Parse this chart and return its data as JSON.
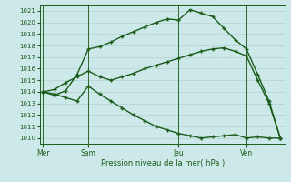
{
  "background_color": "#cce8e8",
  "grid_color": "#aacccc",
  "line_color": "#1a5c1a",
  "title": "Pression niveau de la mer( hPa )",
  "ylim": [
    1009.5,
    1021.5
  ],
  "yticks": [
    1010,
    1011,
    1012,
    1013,
    1014,
    1015,
    1016,
    1017,
    1018,
    1019,
    1020,
    1021
  ],
  "day_labels": [
    "Mer",
    "Sam",
    "Jeu",
    "Ven"
  ],
  "day_positions": [
    0,
    4,
    12,
    18
  ],
  "xlim": [
    -0.3,
    21.5
  ],
  "line1_x": [
    0,
    1,
    2,
    3,
    4,
    5,
    6,
    7,
    8,
    9,
    10,
    11,
    12,
    13,
    14,
    15,
    16,
    17,
    18,
    19,
    20,
    21
  ],
  "line1_y": [
    1014.0,
    1013.7,
    1014.1,
    1015.5,
    1017.7,
    1017.9,
    1018.3,
    1018.8,
    1019.2,
    1019.6,
    1020.0,
    1020.3,
    1020.2,
    1021.1,
    1020.8,
    1020.5,
    1019.5,
    1018.5,
    1017.7,
    1015.5,
    1013.2,
    1010.0
  ],
  "line2_x": [
    0,
    1,
    2,
    3,
    4,
    5,
    6,
    7,
    8,
    9,
    10,
    11,
    12,
    13,
    14,
    15,
    16,
    17,
    18,
    19,
    20,
    21
  ],
  "line2_y": [
    1014.0,
    1014.2,
    1014.8,
    1015.3,
    1015.8,
    1015.3,
    1015.0,
    1015.3,
    1015.6,
    1016.0,
    1016.3,
    1016.6,
    1016.9,
    1017.2,
    1017.5,
    1017.7,
    1017.8,
    1017.5,
    1017.1,
    1015.0,
    1013.0,
    1010.0
  ],
  "line3_x": [
    0,
    1,
    2,
    3,
    4,
    5,
    6,
    7,
    8,
    9,
    10,
    11,
    12,
    13,
    14,
    15,
    16,
    17,
    18,
    19,
    20,
    21
  ],
  "line3_y": [
    1014.0,
    1013.8,
    1013.5,
    1013.2,
    1014.5,
    1013.8,
    1013.2,
    1012.6,
    1012.0,
    1011.5,
    1011.0,
    1010.7,
    1010.4,
    1010.2,
    1010.0,
    1010.1,
    1010.2,
    1010.3,
    1010.0,
    1010.1,
    1010.0,
    1010.0
  ],
  "marker": "+",
  "markersize": 3.5,
  "linewidth": 1.0,
  "ytick_fontsize": 5.0,
  "xtick_fontsize": 5.5,
  "title_fontsize": 6.0
}
